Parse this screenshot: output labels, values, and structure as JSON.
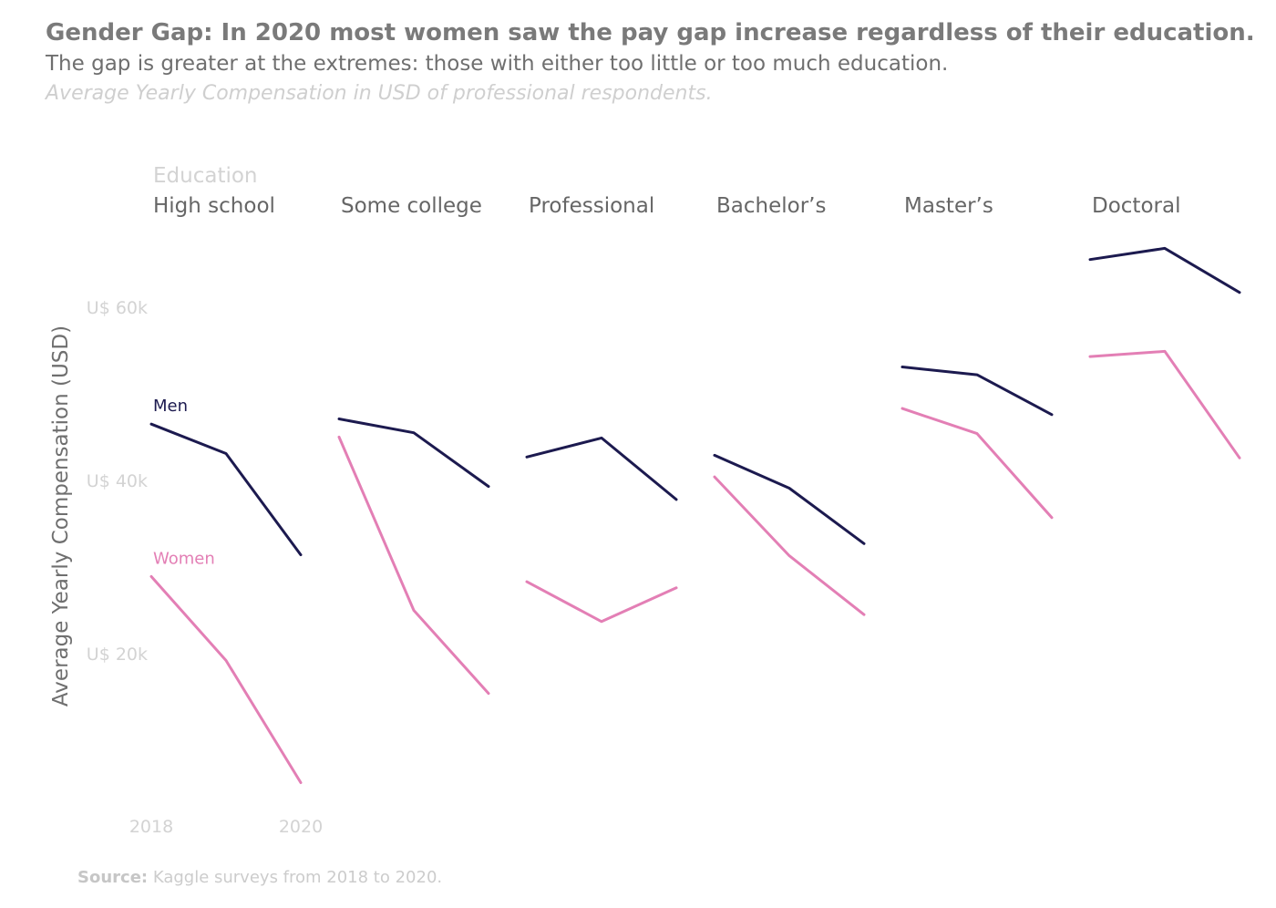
{
  "header": {
    "title": "Gender Gap: In 2020 most women saw the pay gap increase regardless of their education.",
    "subtitle": "The gap is greater at the extremes: those with either too little or too much education.",
    "caption": "Average Yearly Compensation in USD of professional respondents."
  },
  "source": {
    "label": "Source:",
    "text": " Kaggle surveys from 2018 to 2020."
  },
  "colors": {
    "men": "#1c1a4f",
    "women": "#e37fb5",
    "axis_text": "#d3d3d3",
    "panel_title": "#666666",
    "ylabel": "#6f6f6f"
  },
  "chart_data": {
    "type": "line",
    "facet_title": "Education",
    "categories": [
      "High school",
      "Some college",
      "Professional",
      "Bachelor’s",
      "Master’s",
      "Doctoral"
    ],
    "x": [
      2018,
      2019,
      2020
    ],
    "xtick_labels": [
      "2018",
      "2020"
    ],
    "ylabel": "Average Yearly Compensation (USD)",
    "yticks": [
      20000,
      40000,
      60000
    ],
    "ytick_labels": [
      "U$ 20k",
      "U$ 40k",
      "U$ 60k"
    ],
    "ylim": [
      0,
      75000
    ],
    "grid": false,
    "series": [
      {
        "name": "Men",
        "color": "#1c1a4f",
        "values": [
          [
            46400,
            43000,
            31300
          ],
          [
            47000,
            45400,
            39200
          ],
          [
            42600,
            44800,
            37700
          ],
          [
            42800,
            39000,
            32600
          ],
          [
            53000,
            52100,
            47500
          ],
          [
            65400,
            66700,
            61600
          ]
        ]
      },
      {
        "name": "Women",
        "color": "#e37fb5",
        "values": [
          [
            28800,
            19100,
            5000
          ],
          [
            44900,
            24900,
            15300
          ],
          [
            28200,
            23600,
            27500
          ],
          [
            40300,
            31200,
            24400
          ],
          [
            48200,
            45300,
            35600
          ],
          [
            54200,
            54800,
            42500
          ]
        ]
      }
    ]
  }
}
